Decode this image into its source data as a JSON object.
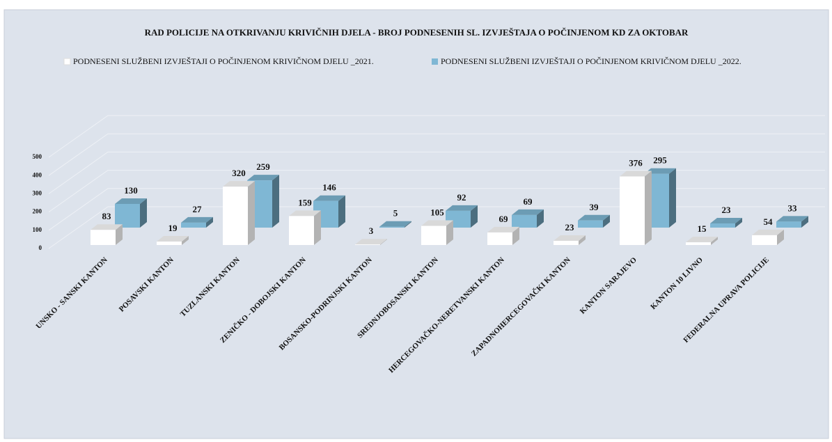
{
  "chart_data": {
    "type": "bar3d",
    "title": "RAD POLICIJE NA OTKRIVANJU KRIVIČNIH DJELA  -  BROJ PODNESENIH SL. IZVJEŠTAJA O POČINJENOM KD ZA  OKTOBAR",
    "categories": [
      "UNSKO - SANSKI KANTON",
      "POSAVSKI KANTON",
      "TUZLANSKI KANTON",
      "ZENIČKO - DOBOJSKI KANTON",
      "BOSANSKO-PODRINJSKI KANTON",
      "SREDNJOBOSANSKI KANTON",
      "HERCEGOVAČKO-NERETVANSKI KANTON",
      "ZAPADNOHERCEGOVAČKI KANTON",
      "KANTON SARAJEVO",
      "KANTON 10 LIVNO",
      "FEDERALNA UPRAVA POLICIJE"
    ],
    "series": [
      {
        "name": "PODNESENI SLUŽBENI IZVJEŠTAJI O POČINJENOM KRIVIČNOM DJELU _2021.",
        "color": "#ffffff",
        "values": [
          83,
          19,
          320,
          159,
          3,
          105,
          69,
          23,
          376,
          15,
          54
        ]
      },
      {
        "name": "PODNESENI SLUŽBENI IZVJEŠTAJI O POČINJENOM KRIVIČNOM DJELU _2022.",
        "color": "#7fb7d4",
        "values": [
          130,
          27,
          259,
          146,
          5,
          92,
          69,
          39,
          295,
          23,
          33
        ]
      }
    ],
    "ylim": [
      0,
      500
    ],
    "yticks": [
      0,
      100,
      200,
      300,
      400,
      500
    ],
    "grid": true,
    "legend": "top"
  }
}
